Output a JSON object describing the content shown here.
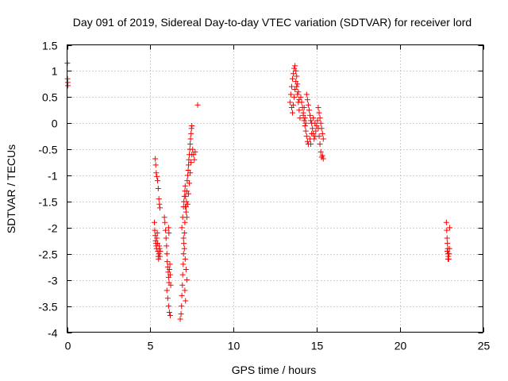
{
  "chart_data": {
    "type": "scatter",
    "title": "Day 091 of 2019, Sidereal Day-to-day VTEC variation (SDTVAR) for receiver lord",
    "xlabel": "GPS time / hours",
    "ylabel": "SDTVAR / TECUs",
    "xlim": [
      0,
      25
    ],
    "ylim": [
      -4,
      1.5
    ],
    "xticks": [
      0,
      5,
      10,
      15,
      20,
      25
    ],
    "xtick_labels": [
      "0",
      "5",
      "10",
      "15",
      "20",
      "25"
    ],
    "yticks": [
      -4,
      -3.5,
      -3,
      -2.5,
      -2,
      -1.5,
      -1,
      -0.5,
      0,
      0.5,
      1,
      1.5
    ],
    "ytick_labels": [
      "-4",
      "-3.5",
      "-3",
      "-2.5",
      "-2",
      "-1.5",
      "-1",
      "-0.5",
      "0",
      "0.5",
      "1",
      "1.5"
    ],
    "grid": true,
    "marker": "+",
    "color": "#ff0000",
    "series": [
      {
        "name": "SDTVAR",
        "points": [
          [
            0.02,
            1.15
          ],
          [
            0.03,
            0.85
          ],
          [
            0.04,
            0.78
          ],
          [
            0.05,
            0.72
          ],
          [
            5.3,
            -0.68
          ],
          [
            5.33,
            -0.8
          ],
          [
            5.36,
            -0.95
          ],
          [
            5.4,
            -1.02
          ],
          [
            5.44,
            -1.1
          ],
          [
            5.48,
            -1.25
          ],
          [
            5.52,
            -1.45
          ],
          [
            5.55,
            -1.55
          ],
          [
            5.58,
            -1.62
          ],
          [
            5.25,
            -1.9
          ],
          [
            5.27,
            -2.05
          ],
          [
            5.3,
            -2.15
          ],
          [
            5.32,
            -2.25
          ],
          [
            5.34,
            -2.3
          ],
          [
            5.36,
            -2.35
          ],
          [
            5.38,
            -2.4
          ],
          [
            5.4,
            -2.2
          ],
          [
            5.42,
            -2.1
          ],
          [
            5.44,
            -2.3
          ],
          [
            5.46,
            -2.45
          ],
          [
            5.48,
            -2.55
          ],
          [
            5.5,
            -2.6
          ],
          [
            5.52,
            -2.5
          ],
          [
            5.54,
            -2.35
          ],
          [
            5.56,
            -2.4
          ],
          [
            5.58,
            -2.55
          ],
          [
            5.6,
            -2.45
          ],
          [
            5.85,
            -1.8
          ],
          [
            5.88,
            -1.9
          ],
          [
            5.92,
            -2.05
          ],
          [
            5.95,
            -2.2
          ],
          [
            5.98,
            -2.35
          ],
          [
            6.0,
            -2.5
          ],
          [
            6.02,
            -2.65
          ],
          [
            6.05,
            -2.75
          ],
          [
            6.08,
            -2.85
          ],
          [
            6.1,
            -2.95
          ],
          [
            6.13,
            -3.05
          ],
          [
            6.15,
            -2.8
          ],
          [
            6.18,
            -2.7
          ],
          [
            6.2,
            -2.9
          ],
          [
            6.23,
            -3.1
          ],
          [
            6.0,
            -3.2
          ],
          [
            6.05,
            -3.35
          ],
          [
            6.1,
            -3.5
          ],
          [
            6.15,
            -3.62
          ],
          [
            6.2,
            -3.68
          ],
          [
            6.1,
            -2.0
          ],
          [
            6.12,
            -2.1
          ],
          [
            6.8,
            -3.75
          ],
          [
            6.85,
            -3.65
          ],
          [
            6.88,
            -3.5
          ],
          [
            6.9,
            -3.3
          ],
          [
            6.93,
            -3.1
          ],
          [
            6.95,
            -2.9
          ],
          [
            6.98,
            -2.7
          ],
          [
            7.0,
            -2.5
          ],
          [
            7.02,
            -2.3
          ],
          [
            7.05,
            -2.1
          ],
          [
            7.08,
            -1.9
          ],
          [
            6.9,
            -2.0
          ],
          [
            6.95,
            -1.8
          ],
          [
            7.0,
            -1.6
          ],
          [
            7.02,
            -1.5
          ],
          [
            7.05,
            -1.4
          ],
          [
            7.08,
            -1.3
          ],
          [
            7.1,
            -1.2
          ],
          [
            7.12,
            -1.4
          ],
          [
            7.15,
            -1.6
          ],
          [
            7.18,
            -1.5
          ],
          [
            7.2,
            -1.3
          ],
          [
            7.22,
            -1.1
          ],
          [
            7.25,
            -1.0
          ],
          [
            7.28,
            -0.9
          ],
          [
            7.3,
            -0.8
          ],
          [
            7.32,
            -0.7
          ],
          [
            7.35,
            -0.6
          ],
          [
            7.38,
            -0.5
          ],
          [
            7.4,
            -0.4
          ],
          [
            7.42,
            -0.3
          ],
          [
            7.45,
            -0.2
          ],
          [
            7.48,
            -0.1
          ],
          [
            7.5,
            -0.05
          ],
          [
            7.1,
            -1.6
          ],
          [
            7.15,
            -1.7
          ],
          [
            7.2,
            -1.8
          ],
          [
            7.25,
            -1.55
          ],
          [
            7.3,
            -1.35
          ],
          [
            7.35,
            -1.15
          ],
          [
            7.4,
            -0.95
          ],
          [
            7.45,
            -0.75
          ],
          [
            7.5,
            -0.6
          ],
          [
            7.55,
            -0.5
          ],
          [
            7.6,
            -0.6
          ],
          [
            7.65,
            -0.7
          ],
          [
            7.7,
            -0.55
          ],
          [
            7.0,
            -2.2
          ],
          [
            7.05,
            -2.4
          ],
          [
            7.1,
            -2.6
          ],
          [
            7.15,
            -2.8
          ],
          [
            7.2,
            -3.0
          ],
          [
            7.08,
            -3.2
          ],
          [
            7.12,
            -3.4
          ],
          [
            7.85,
            0.35
          ],
          [
            13.4,
            0.4
          ],
          [
            13.45,
            0.55
          ],
          [
            13.5,
            0.7
          ],
          [
            13.55,
            0.85
          ],
          [
            13.6,
            0.95
          ],
          [
            13.65,
            1.05
          ],
          [
            13.7,
            1.1
          ],
          [
            13.75,
            1.0
          ],
          [
            13.8,
            0.9
          ],
          [
            13.85,
            0.75
          ],
          [
            13.9,
            0.6
          ],
          [
            13.95,
            0.45
          ],
          [
            13.5,
            0.3
          ],
          [
            13.55,
            0.2
          ],
          [
            13.6,
            0.35
          ],
          [
            13.65,
            0.5
          ],
          [
            13.7,
            0.65
          ],
          [
            13.75,
            0.8
          ],
          [
            13.8,
            0.7
          ],
          [
            13.85,
            0.55
          ],
          [
            13.9,
            0.4
          ],
          [
            13.95,
            0.25
          ],
          [
            14.0,
            0.1
          ],
          [
            14.05,
            0.5
          ],
          [
            14.1,
            0.4
          ],
          [
            14.15,
            0.3
          ],
          [
            14.2,
            0.15
          ],
          [
            14.25,
            0.05
          ],
          [
            14.3,
            -0.05
          ],
          [
            14.35,
            -0.15
          ],
          [
            14.4,
            -0.25
          ],
          [
            14.45,
            -0.35
          ],
          [
            14.5,
            -0.4
          ],
          [
            14.4,
            0.55
          ],
          [
            14.45,
            0.45
          ],
          [
            14.5,
            0.35
          ],
          [
            14.55,
            0.25
          ],
          [
            14.6,
            0.15
          ],
          [
            14.65,
            0.05
          ],
          [
            14.7,
            0.0
          ],
          [
            14.75,
            -0.1
          ],
          [
            14.8,
            -0.2
          ],
          [
            14.85,
            -0.3
          ],
          [
            14.9,
            -0.25
          ],
          [
            14.95,
            -0.15
          ],
          [
            15.0,
            -0.05
          ],
          [
            15.05,
            0.05
          ],
          [
            15.1,
            -0.1
          ],
          [
            15.15,
            -0.25
          ],
          [
            15.2,
            -0.4
          ],
          [
            15.25,
            -0.55
          ],
          [
            15.3,
            -0.65
          ],
          [
            15.35,
            -0.62
          ],
          [
            15.4,
            -0.68
          ],
          [
            15.1,
            0.3
          ],
          [
            15.15,
            0.2
          ],
          [
            15.2,
            0.1
          ],
          [
            15.25,
            0.0
          ],
          [
            15.3,
            -0.1
          ],
          [
            15.35,
            -0.2
          ],
          [
            15.4,
            -0.3
          ],
          [
            14.2,
            0.2
          ],
          [
            14.25,
            0.3
          ],
          [
            14.3,
            0.1
          ],
          [
            14.35,
            0.0
          ],
          [
            14.6,
            -0.3
          ],
          [
            14.65,
            -0.4
          ],
          [
            14.7,
            -0.2
          ],
          [
            14.8,
            0.1
          ],
          [
            14.9,
            0.0
          ],
          [
            22.8,
            -1.9
          ],
          [
            22.82,
            -2.05
          ],
          [
            22.84,
            -2.2
          ],
          [
            22.86,
            -2.3
          ],
          [
            22.88,
            -2.4
          ],
          [
            22.9,
            -2.5
          ],
          [
            22.92,
            -2.55
          ],
          [
            22.94,
            -2.6
          ],
          [
            22.96,
            -2.5
          ],
          [
            22.98,
            -2.4
          ],
          [
            23.0,
            -2.0
          ],
          [
            22.85,
            -2.45
          ],
          [
            22.9,
            -2.6
          ]
        ]
      }
    ]
  }
}
